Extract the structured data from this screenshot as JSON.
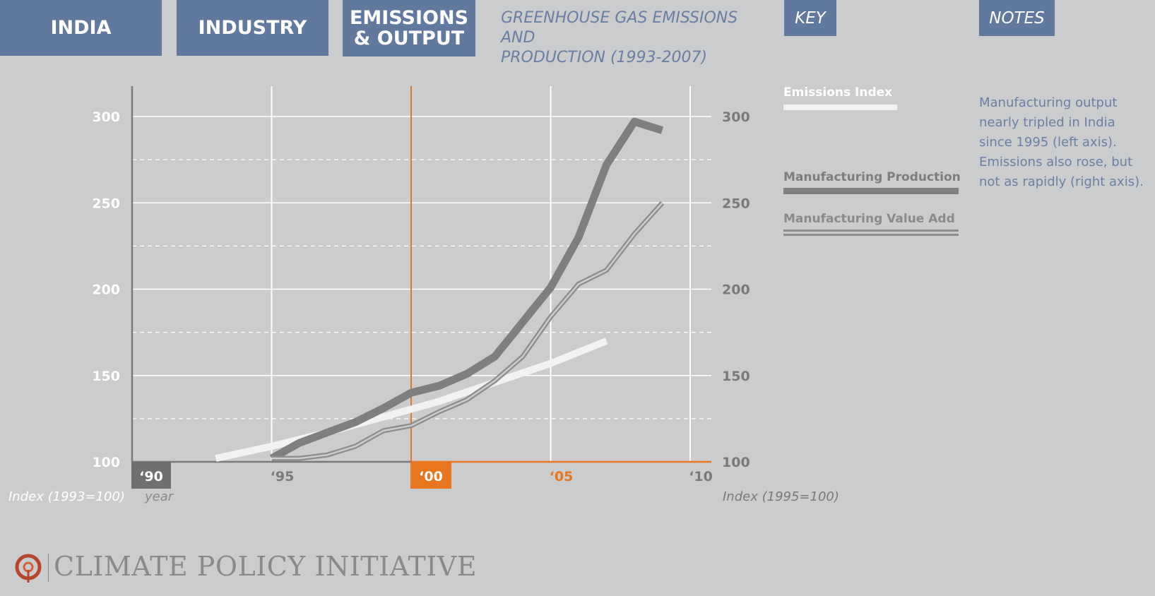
{
  "tabs": {
    "india": "INDIA",
    "industry": "INDUSTRY",
    "emissions_line1": "EMISSIONS",
    "emissions_line2": "& OUTPUT"
  },
  "title_line1": "GREENHOUSE GAS EMISSIONS AND",
  "title_line2": "PRODUCTION (1993-2007)",
  "key_label": "KEY",
  "notes_label": "NOTES",
  "notes_text": "Manufacturing output nearly tripled in India since 1995 (left axis). Emissions also rose, but not as rapidly (right axis).",
  "legend": {
    "emissions": "Emissions Index",
    "production": "Manufacturing Production",
    "value_add": "Manufacturing Value Add"
  },
  "logo_text": "CLIMATE POLICY INITIATIVE",
  "colors": {
    "background": "#cbcccd",
    "tab": "#61799e",
    "title": "#6a7fa3",
    "orange": "#e8761f",
    "emissions": "#f2f2f2",
    "production": "#7f7f80",
    "value_add": "#8c8c8d"
  },
  "chart_data": {
    "type": "line",
    "xlabel": "year",
    "ylabel_left": "Index (1993=100)",
    "ylabel_right": "Index (1995=100)",
    "x_range": [
      1990,
      2010
    ],
    "x_ticks": [
      {
        "year": 1990,
        "label": "‘90"
      },
      {
        "year": 1995,
        "label": "‘95"
      },
      {
        "year": 2000,
        "label": "‘00"
      },
      {
        "year": 2005,
        "label": "‘05"
      },
      {
        "year": 2010,
        "label": "‘10"
      }
    ],
    "highlight_year": 2000,
    "left_axis": {
      "ylim": [
        100,
        317
      ],
      "ticks": [
        100,
        150,
        200,
        250,
        300
      ]
    },
    "right_axis": {
      "ylim": [
        100,
        317
      ],
      "ticks": [
        100,
        150,
        200,
        250,
        300
      ]
    },
    "grid_solid": [
      150,
      200,
      250,
      300
    ],
    "grid_dashed": [
      125,
      175,
      225,
      275
    ],
    "series": [
      {
        "name": "Emissions Index",
        "axis": "right",
        "x": [
          1993,
          1995,
          1997,
          1999,
          2001,
          2003,
          2005,
          2007
        ],
        "y": [
          102,
          109,
          117,
          126,
          135,
          146,
          157,
          170
        ]
      },
      {
        "name": "Manufacturing Production",
        "axis": "left",
        "x": [
          1995,
          1996,
          1997,
          1998,
          1999,
          2000,
          2001,
          2002,
          2003,
          2004,
          2005,
          2006,
          2007,
          2008,
          2009
        ],
        "y": [
          102,
          111,
          117,
          123,
          131,
          140,
          144,
          151,
          161,
          181,
          201,
          230,
          272,
          297,
          292
        ]
      },
      {
        "name": "Manufacturing Value Add",
        "axis": "left",
        "x": [
          1995,
          1996,
          1997,
          1998,
          1999,
          2000,
          2001,
          2002,
          2003,
          2004,
          2005,
          2006,
          2007,
          2008,
          2009
        ],
        "y": [
          102,
          102,
          104,
          109,
          118,
          121,
          129,
          136,
          147,
          161,
          184,
          203,
          211,
          232,
          250
        ]
      }
    ]
  }
}
